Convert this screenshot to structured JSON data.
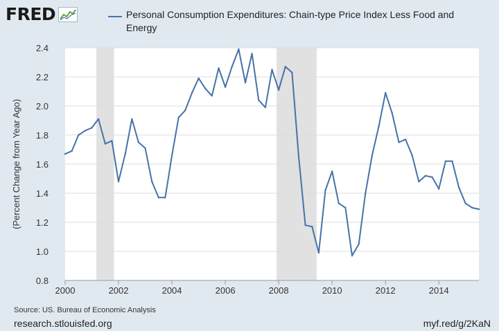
{
  "header": {
    "logo_text": "FRED",
    "logo_icon": "trend-chart-icon",
    "legend_label": "Personal Consumption Expenditures: Chain-type Price Index Less Food and Energy"
  },
  "footer": {
    "source": "Source: US. Bureau of Economic Analysis",
    "site": "research.stlouisfed.org",
    "short_url": "myf.red/g/2KaN"
  },
  "colors": {
    "series": "#4572a7",
    "recession": "#e1e1e1",
    "plot_bg": "#ffffff",
    "page_bg": "#e1e9f0",
    "grid": "#dddddd"
  },
  "chart_data": {
    "type": "line",
    "title": "",
    "xlabel": "",
    "ylabel": "(Percent Change from Year Ago)",
    "xlim": [
      2000.0,
      2015.5
    ],
    "ylim": [
      0.8,
      2.4
    ],
    "x_ticks": [
      "2000",
      "2002",
      "2004",
      "2006",
      "2008",
      "2010",
      "2012",
      "2014"
    ],
    "y_ticks": [
      "0.8",
      "1.0",
      "1.2",
      "1.4",
      "1.6",
      "1.8",
      "2.0",
      "2.2",
      "2.4"
    ],
    "grid": "horizontal",
    "legend_position": "top",
    "recessions": [
      [
        2001.17,
        2001.83
      ],
      [
        2007.92,
        2009.42
      ]
    ],
    "series": [
      {
        "name": "Personal Consumption Expenditures: Chain-type Price Index Less Food and Energy",
        "x": [
          2000.0,
          2000.25,
          2000.5,
          2000.75,
          2001.0,
          2001.25,
          2001.5,
          2001.75,
          2002.0,
          2002.25,
          2002.5,
          2002.75,
          2003.0,
          2003.25,
          2003.5,
          2003.75,
          2004.0,
          2004.25,
          2004.5,
          2004.75,
          2005.0,
          2005.25,
          2005.5,
          2005.75,
          2006.0,
          2006.25,
          2006.5,
          2006.75,
          2007.0,
          2007.25,
          2007.5,
          2007.75,
          2008.0,
          2008.25,
          2008.5,
          2008.75,
          2009.0,
          2009.25,
          2009.5,
          2009.75,
          2010.0,
          2010.25,
          2010.5,
          2010.75,
          2011.0,
          2011.25,
          2011.5,
          2011.75,
          2012.0,
          2012.25,
          2012.5,
          2012.75,
          2013.0,
          2013.25,
          2013.5,
          2013.75,
          2014.0,
          2014.25,
          2014.5,
          2014.75,
          2015.0,
          2015.25,
          2015.5
        ],
        "values": [
          1.67,
          1.69,
          1.8,
          1.83,
          1.85,
          1.91,
          1.74,
          1.76,
          1.48,
          1.67,
          1.91,
          1.75,
          1.71,
          1.48,
          1.37,
          1.37,
          1.66,
          1.92,
          1.97,
          2.09,
          2.19,
          2.12,
          2.07,
          2.26,
          2.13,
          2.27,
          2.39,
          2.16,
          2.36,
          2.04,
          1.99,
          2.25,
          2.11,
          2.27,
          2.23,
          1.65,
          1.18,
          1.17,
          0.99,
          1.42,
          1.55,
          1.33,
          1.3,
          0.97,
          1.05,
          1.4,
          1.66,
          1.86,
          2.09,
          1.95,
          1.75,
          1.77,
          1.66,
          1.48,
          1.52,
          1.51,
          1.43,
          1.62,
          1.62,
          1.44,
          1.33,
          1.3,
          1.29
        ]
      }
    ]
  }
}
